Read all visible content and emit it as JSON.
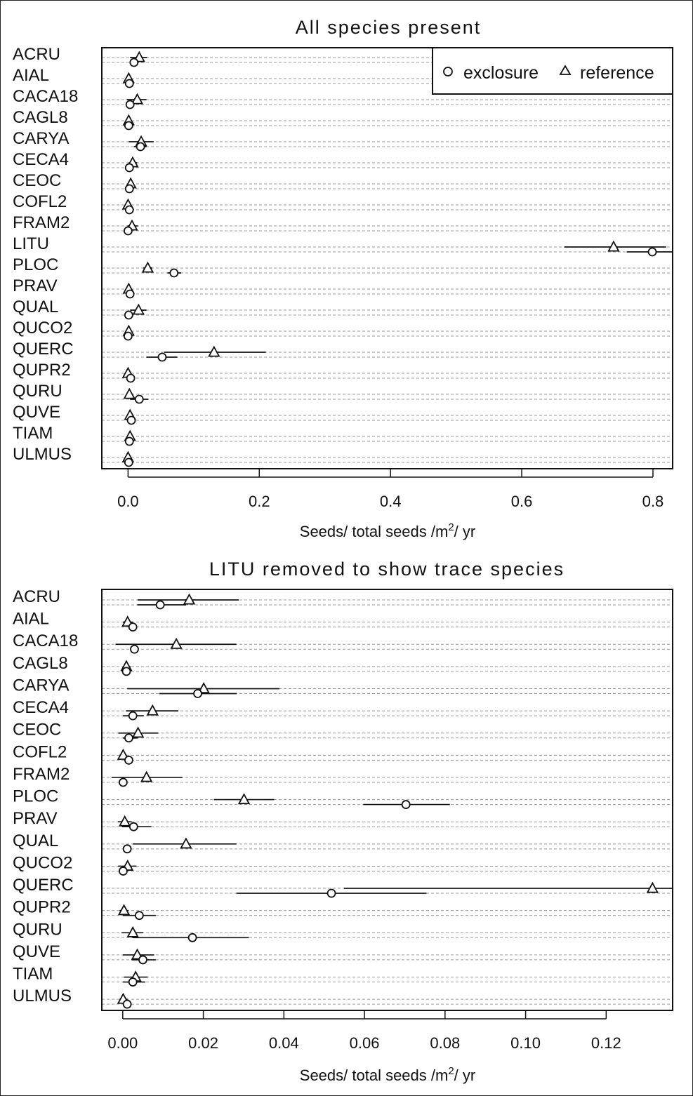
{
  "figure": {
    "panel1_title": "All species present",
    "panel2_title": "LITU removed to show trace species"
  },
  "legend": {
    "exclosure_label": "exclosure",
    "reference_label": "reference",
    "exclosure_marker": "circle",
    "reference_marker": "triangle"
  },
  "chart_data": [
    {
      "type": "scatter",
      "title": "All species present",
      "xlabel": "Seeds/ total seeds /m2/ yr",
      "xlim": [
        -0.04,
        0.83
      ],
      "xticks": [
        0.0,
        0.2,
        0.4,
        0.6,
        0.8
      ],
      "xtick_labels": [
        "0.0",
        "0.2",
        "0.4",
        "0.6",
        "0.8"
      ],
      "grid": "horizontal dashed",
      "legend_position": "top-right",
      "categories": [
        "ACRU",
        "AIAL",
        "CACA18",
        "CAGL8",
        "CARYA",
        "CECA4",
        "CEOC",
        "COFL2",
        "FRAM2",
        "LITU",
        "PLOC",
        "PRAV",
        "QUAL",
        "QUCO2",
        "QUERC",
        "QUPR2",
        "QURU",
        "QUVE",
        "TIAM",
        "ULMUS"
      ],
      "series": [
        {
          "name": "reference",
          "marker": "triangle",
          "values": [
            0.017,
            0.001,
            0.014,
            0.001,
            0.02,
            0.007,
            0.004,
            0.0,
            0.006,
            0.74,
            0.03,
            0.001,
            0.016,
            0.001,
            0.131,
            0.0,
            0.002,
            0.003,
            0.003,
            0.0
          ],
          "ci_low": [
            0.003,
            0.0,
            -0.002,
            0.0,
            0.001,
            0.001,
            -0.001,
            -0.001,
            -0.001,
            0.665,
            0.023,
            -0.001,
            0.003,
            -0.001,
            0.055,
            -0.001,
            0.0,
            0.0,
            0.001,
            -0.001
          ],
          "ci_high": [
            0.029,
            0.003,
            0.028,
            0.003,
            0.039,
            0.014,
            0.009,
            0.002,
            0.015,
            0.82,
            0.037,
            0.003,
            0.028,
            0.003,
            0.21,
            0.002,
            0.005,
            0.007,
            0.006,
            0.002
          ]
        },
        {
          "name": "exclosure",
          "marker": "circle",
          "values": [
            0.009,
            0.002,
            0.003,
            0.001,
            0.019,
            0.002,
            0.002,
            0.002,
            0.0,
            0.799,
            0.07,
            0.003,
            0.001,
            0.0,
            0.052,
            0.004,
            0.017,
            0.005,
            0.002,
            0.001
          ],
          "ci_low": [
            0.004,
            0.001,
            0.002,
            0.0,
            0.009,
            0.0,
            0.0,
            0.001,
            -0.001,
            0.76,
            0.06,
            0.0,
            0.0,
            -0.001,
            0.028,
            0.0,
            0.003,
            0.002,
            0.0,
            0.0
          ],
          "ci_high": [
            0.016,
            0.003,
            0.004,
            0.002,
            0.028,
            0.005,
            0.005,
            0.003,
            0.001,
            0.832,
            0.081,
            0.007,
            0.002,
            0.001,
            0.075,
            0.008,
            0.031,
            0.008,
            0.005,
            0.002
          ]
        }
      ]
    },
    {
      "type": "scatter",
      "title": "LITU removed to show trace species",
      "xlabel": "Seeds/ total seeds /m2/ yr",
      "xlim": [
        -0.0052,
        0.1365
      ],
      "xticks": [
        0.0,
        0.02,
        0.04,
        0.06,
        0.08,
        0.1,
        0.12
      ],
      "xtick_labels": [
        "0.00",
        "0.02",
        "0.04",
        "0.06",
        "0.08",
        "0.10",
        "0.12"
      ],
      "grid": "horizontal dashed",
      "categories": [
        "ACRU",
        "AIAL",
        "CACA18",
        "CAGL8",
        "CARYA",
        "CECA4",
        "CEOC",
        "COFL2",
        "FRAM2",
        "PLOC",
        "PRAV",
        "QUAL",
        "QUCO2",
        "QUERC",
        "QUPR2",
        "QURU",
        "QUVE",
        "TIAM",
        "ULMUS"
      ],
      "series": [
        {
          "name": "reference",
          "marker": "triangle",
          "values": [
            0.0165,
            0.0012,
            0.0133,
            0.0009,
            0.0201,
            0.0074,
            0.0038,
            0.0001,
            0.0059,
            0.0301,
            0.0005,
            0.0157,
            0.0012,
            0.1315,
            0.0003,
            0.0025,
            0.0036,
            0.0032,
            0.0001
          ],
          "ci_low": [
            0.0037,
            0.0,
            -0.0018,
            0.0,
            0.0011,
            0.0008,
            -0.0011,
            -0.0008,
            -0.0028,
            0.0226,
            -0.0012,
            0.0025,
            -0.0012,
            0.0549,
            -0.0008,
            -0.0003,
            0.0,
            0.0003,
            -0.0008
          ],
          "ci_high": [
            0.0288,
            0.0025,
            0.0282,
            0.0019,
            0.0389,
            0.0138,
            0.0088,
            0.001,
            0.0148,
            0.0376,
            0.0022,
            0.0282,
            0.0034,
            0.1365,
            0.0014,
            0.0051,
            0.0078,
            0.0062,
            0.0012
          ]
        },
        {
          "name": "exclosure",
          "marker": "circle",
          "values": [
            0.0093,
            0.0025,
            0.0029,
            0.0009,
            0.0186,
            0.0025,
            0.0015,
            0.0015,
            0.0001,
            0.0703,
            0.0027,
            0.0011,
            0.0001,
            0.0518,
            0.0041,
            0.0173,
            0.005,
            0.0025,
            0.0011
          ],
          "ci_low": [
            0.0036,
            0.0017,
            0.0023,
            0.0,
            0.0091,
            0.0,
            0.0,
            0.0008,
            -0.0003,
            0.0597,
            -0.0002,
            0.0004,
            -0.0005,
            0.0282,
            0.0,
            0.0024,
            0.0022,
            0.0,
            0.0003
          ],
          "ci_high": [
            0.0157,
            0.0033,
            0.0036,
            0.0018,
            0.0283,
            0.0052,
            0.0037,
            0.0022,
            0.0006,
            0.0812,
            0.0071,
            0.0019,
            0.0008,
            0.0754,
            0.0082,
            0.0313,
            0.0082,
            0.0056,
            0.0018
          ]
        }
      ]
    }
  ]
}
